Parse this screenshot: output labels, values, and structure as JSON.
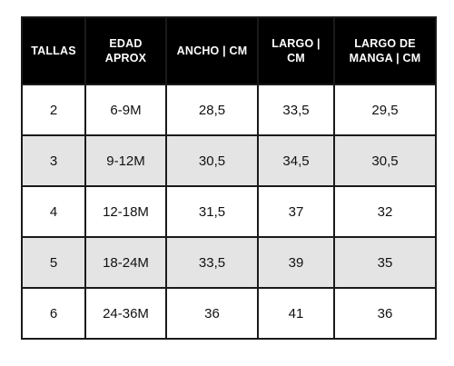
{
  "table": {
    "headers": [
      {
        "lines": [
          "TALLAS"
        ]
      },
      {
        "lines": [
          "EDAD",
          "APROX"
        ]
      },
      {
        "lines": [
          "ANCHO | CM"
        ]
      },
      {
        "lines": [
          "LARGO |",
          "CM"
        ]
      },
      {
        "lines": [
          "LARGO DE",
          "MANGA | CM"
        ]
      }
    ],
    "rows": [
      [
        "2",
        "6-9M",
        "28,5",
        "33,5",
        "29,5"
      ],
      [
        "3",
        "9-12M",
        "30,5",
        "34,5",
        "30,5"
      ],
      [
        "4",
        "12-18M",
        "31,5",
        "37",
        "32"
      ],
      [
        "5",
        "18-24M",
        "33,5",
        "39",
        "35"
      ],
      [
        "6",
        "24-36M",
        "36",
        "41",
        "36"
      ]
    ]
  },
  "colors": {
    "header_bg": "#000000",
    "header_text": "#ffffff",
    "row_alt_bg": "#e4e4e4",
    "border": "#1a1a1a"
  }
}
